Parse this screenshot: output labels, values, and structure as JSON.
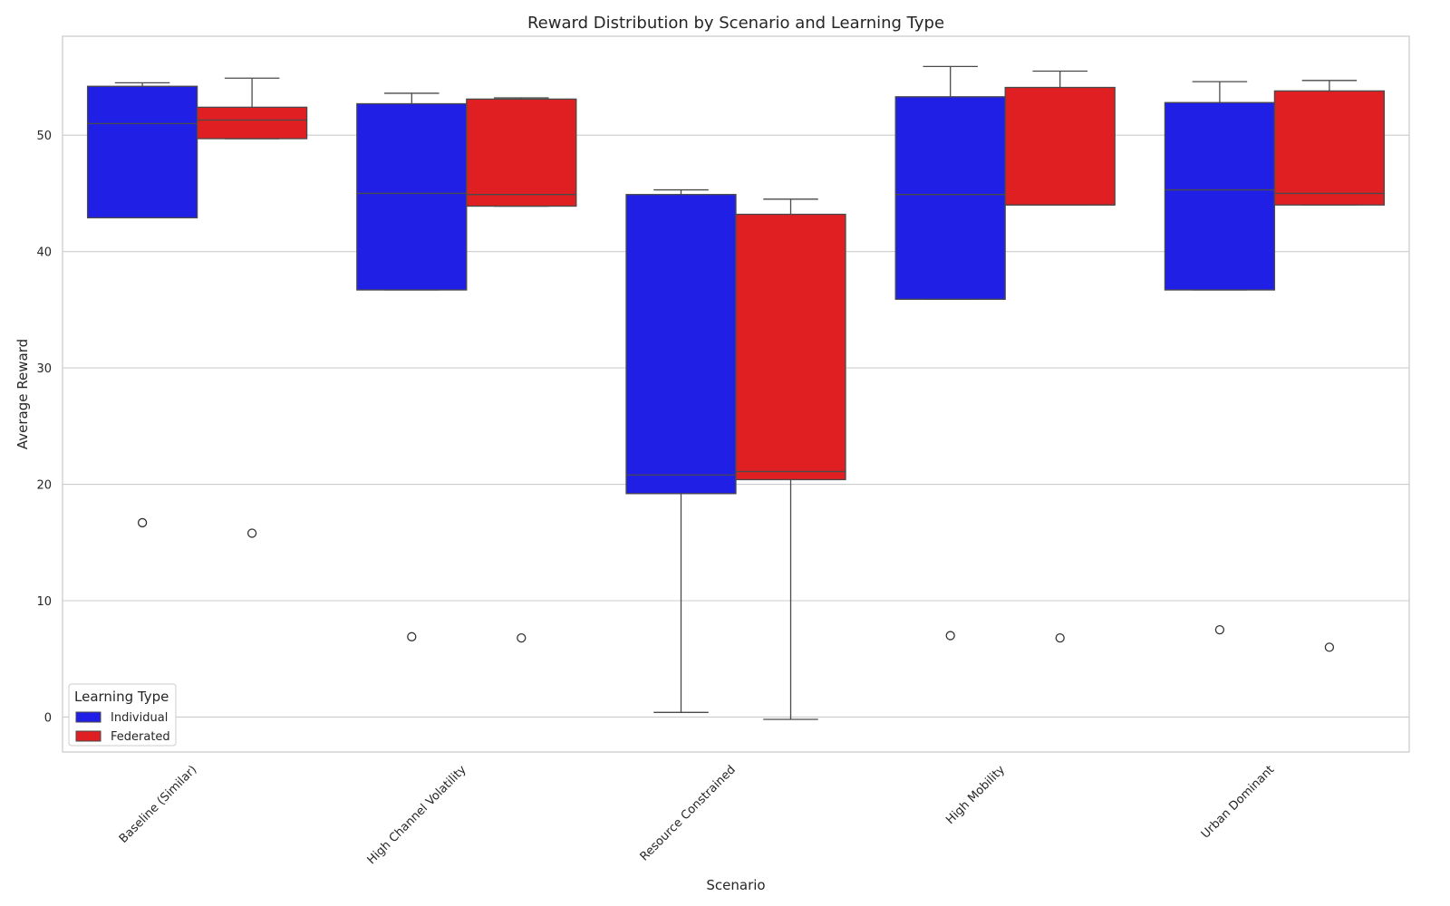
{
  "chart_data": {
    "type": "box",
    "title": "Reward Distribution by Scenario and Learning Type",
    "xlabel": "Scenario",
    "ylabel": "Average Reward",
    "ylim": [
      -3,
      58.5
    ],
    "yticks": [
      0,
      10,
      20,
      30,
      40,
      50
    ],
    "grid": "horizontal",
    "categories": [
      "Baseline (Similar)",
      "High Channel Volatility",
      "Resource Constrained",
      "High Mobility",
      "Urban Dominant"
    ],
    "legend": {
      "title": "Learning Type",
      "placement": "lower-left"
    },
    "series": [
      {
        "name": "Individual",
        "color": "#1f1fe6",
        "boxes": [
          {
            "whisker_low": 42.9,
            "q1": 42.9,
            "median": 51.0,
            "q3": 54.2,
            "whisker_high": 54.5,
            "outliers": [
              16.7
            ]
          },
          {
            "whisker_low": 36.7,
            "q1": 36.7,
            "median": 45.0,
            "q3": 52.7,
            "whisker_high": 53.6,
            "outliers": [
              6.9
            ]
          },
          {
            "whisker_low": 0.4,
            "q1": 19.2,
            "median": 20.8,
            "q3": 44.9,
            "whisker_high": 45.3,
            "outliers": []
          },
          {
            "whisker_low": 35.9,
            "q1": 35.9,
            "median": 44.9,
            "q3": 53.3,
            "whisker_high": 55.9,
            "outliers": [
              7.0
            ]
          },
          {
            "whisker_low": 36.7,
            "q1": 36.7,
            "median": 45.3,
            "q3": 52.8,
            "whisker_high": 54.6,
            "outliers": [
              7.5
            ]
          }
        ]
      },
      {
        "name": "Federated",
        "color": "#e01f22",
        "boxes": [
          {
            "whisker_low": 49.7,
            "q1": 49.7,
            "median": 51.3,
            "q3": 52.4,
            "whisker_high": 54.9,
            "outliers": [
              15.8
            ]
          },
          {
            "whisker_low": 43.9,
            "q1": 43.9,
            "median": 44.9,
            "q3": 53.1,
            "whisker_high": 53.2,
            "outliers": [
              6.8
            ]
          },
          {
            "whisker_low": -0.2,
            "q1": 20.4,
            "median": 21.1,
            "q3": 43.2,
            "whisker_high": 44.5,
            "outliers": []
          },
          {
            "whisker_low": 44.0,
            "q1": 44.0,
            "median": 44.0,
            "q3": 54.1,
            "whisker_high": 55.5,
            "outliers": [
              6.8
            ]
          },
          {
            "whisker_low": 44.0,
            "q1": 44.0,
            "median": 45.0,
            "q3": 53.8,
            "whisker_high": 54.7,
            "outliers": [
              6.0
            ]
          }
        ]
      }
    ]
  }
}
